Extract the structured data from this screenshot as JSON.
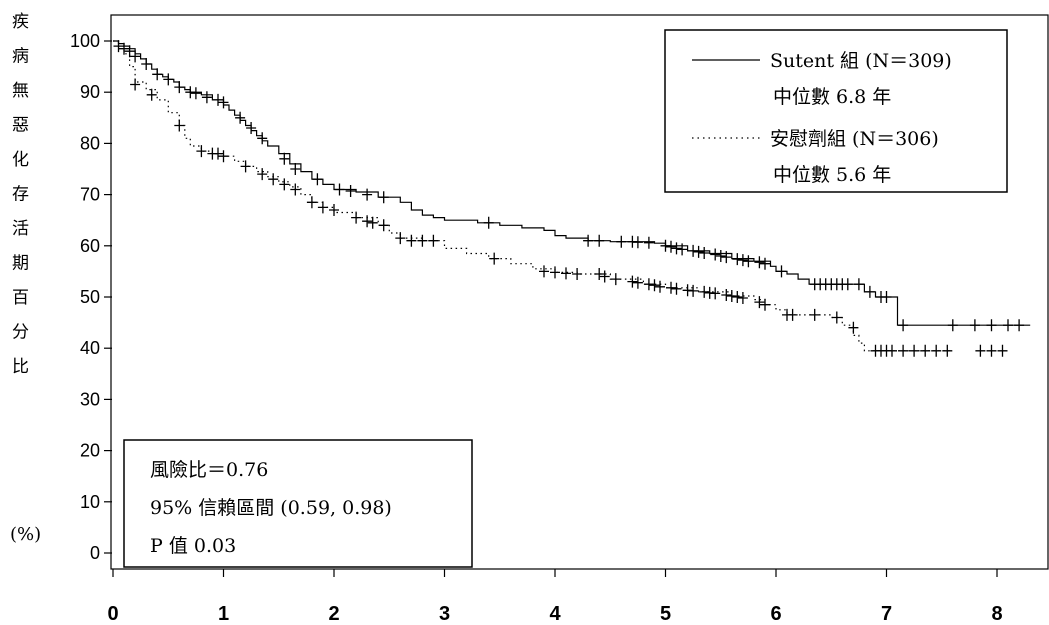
{
  "chart_data": {
    "type": "line",
    "subtype": "kaplan-meier",
    "ylabel": "疾病無惡化存活期百分比",
    "ylabel_unit": "(%)",
    "xlabel": "",
    "xlim": [
      0,
      8.3
    ],
    "ylim": [
      0,
      100
    ],
    "xticks": [
      0,
      1,
      2,
      3,
      4,
      5,
      6,
      7,
      8
    ],
    "yticks": [
      0,
      10,
      20,
      30,
      40,
      50,
      60,
      70,
      80,
      90,
      100
    ],
    "grid": false,
    "legend_position": "top-right",
    "legend": [
      {
        "label": "Sutent 組 (N＝309)",
        "sublabel": "中位數 6.8 年",
        "style": "solid"
      },
      {
        "label": "安慰劑組 (N＝306)",
        "sublabel": "中位數 5.6 年",
        "style": "dotted"
      }
    ],
    "annotation": {
      "position": "bottom-left",
      "lines": [
        "風險比＝0.76",
        "95% 信賴區間 (0.59, 0.98)",
        "P 值 0.03"
      ]
    },
    "series": [
      {
        "name": "Sutent 組",
        "style": "solid",
        "points": [
          [
            0,
            100
          ],
          [
            0.05,
            99.5
          ],
          [
            0.1,
            99
          ],
          [
            0.15,
            98.5
          ],
          [
            0.2,
            97.5
          ],
          [
            0.25,
            96.5
          ],
          [
            0.3,
            95.5
          ],
          [
            0.35,
            94.5
          ],
          [
            0.4,
            93.5
          ],
          [
            0.45,
            93
          ],
          [
            0.5,
            92.5
          ],
          [
            0.55,
            92
          ],
          [
            0.6,
            91
          ],
          [
            0.65,
            90.5
          ],
          [
            0.7,
            90
          ],
          [
            0.8,
            89.5
          ],
          [
            0.9,
            88.5
          ],
          [
            1.0,
            87.5
          ],
          [
            1.05,
            86.5
          ],
          [
            1.1,
            85.5
          ],
          [
            1.15,
            84.5
          ],
          [
            1.2,
            83.5
          ],
          [
            1.25,
            82.5
          ],
          [
            1.3,
            81.5
          ],
          [
            1.35,
            80.5
          ],
          [
            1.4,
            79.5
          ],
          [
            1.5,
            78
          ],
          [
            1.6,
            76
          ],
          [
            1.7,
            74.5
          ],
          [
            1.8,
            73
          ],
          [
            1.9,
            72
          ],
          [
            2.0,
            71
          ],
          [
            2.2,
            70.5
          ],
          [
            2.4,
            69.5
          ],
          [
            2.6,
            68.5
          ],
          [
            2.7,
            67
          ],
          [
            2.8,
            66
          ],
          [
            2.9,
            65.5
          ],
          [
            3.0,
            65
          ],
          [
            3.3,
            64.5
          ],
          [
            3.5,
            64
          ],
          [
            3.7,
            63.5
          ],
          [
            3.9,
            63
          ],
          [
            4.0,
            62
          ],
          [
            4.1,
            61.5
          ],
          [
            4.3,
            61
          ],
          [
            4.5,
            60.8
          ],
          [
            4.9,
            60.5
          ],
          [
            5.0,
            60
          ],
          [
            5.2,
            59
          ],
          [
            5.4,
            58.5
          ],
          [
            5.6,
            57.5
          ],
          [
            5.8,
            57
          ],
          [
            5.95,
            56
          ],
          [
            6.0,
            55
          ],
          [
            6.1,
            54.5
          ],
          [
            6.2,
            53.5
          ],
          [
            6.3,
            52.5
          ],
          [
            6.5,
            52.5
          ],
          [
            6.7,
            52.5
          ],
          [
            6.8,
            51
          ],
          [
            6.9,
            50
          ],
          [
            7.0,
            50
          ],
          [
            7.1,
            44.5
          ],
          [
            8.3,
            44.5
          ]
        ],
        "censored": [
          [
            0.05,
            99
          ],
          [
            0.1,
            98.5
          ],
          [
            0.15,
            98
          ],
          [
            0.2,
            97
          ],
          [
            0.3,
            95.5
          ],
          [
            0.4,
            93.5
          ],
          [
            0.5,
            92.5
          ],
          [
            0.6,
            91
          ],
          [
            0.7,
            90
          ],
          [
            0.75,
            89.8
          ],
          [
            0.85,
            89
          ],
          [
            0.95,
            88.5
          ],
          [
            1.0,
            88
          ],
          [
            1.15,
            85
          ],
          [
            1.25,
            83
          ],
          [
            1.35,
            81
          ],
          [
            1.55,
            77
          ],
          [
            1.65,
            75
          ],
          [
            1.85,
            73
          ],
          [
            2.05,
            71
          ],
          [
            2.15,
            70.7
          ],
          [
            2.3,
            70
          ],
          [
            2.45,
            69.5
          ],
          [
            3.4,
            64.5
          ],
          [
            4.3,
            61
          ],
          [
            4.4,
            61
          ],
          [
            4.6,
            60.8
          ],
          [
            4.7,
            60.8
          ],
          [
            4.75,
            60.7
          ],
          [
            4.85,
            60.6
          ],
          [
            5.0,
            60
          ],
          [
            5.05,
            59.8
          ],
          [
            5.1,
            59.5
          ],
          [
            5.15,
            59.3
          ],
          [
            5.25,
            59
          ],
          [
            5.3,
            58.8
          ],
          [
            5.35,
            58.6
          ],
          [
            5.45,
            58.3
          ],
          [
            5.5,
            58
          ],
          [
            5.55,
            57.8
          ],
          [
            5.65,
            57.4
          ],
          [
            5.7,
            57.2
          ],
          [
            5.75,
            57
          ],
          [
            5.85,
            56.8
          ],
          [
            5.9,
            56.5
          ],
          [
            6.05,
            55
          ],
          [
            6.35,
            52.5
          ],
          [
            6.4,
            52.5
          ],
          [
            6.45,
            52.5
          ],
          [
            6.5,
            52.5
          ],
          [
            6.55,
            52.5
          ],
          [
            6.6,
            52.5
          ],
          [
            6.65,
            52.5
          ],
          [
            6.75,
            52.5
          ],
          [
            6.85,
            51
          ],
          [
            6.95,
            50
          ],
          [
            7.0,
            50
          ],
          [
            7.15,
            44.5
          ],
          [
            7.6,
            44.5
          ],
          [
            7.8,
            44.5
          ],
          [
            7.95,
            44.5
          ],
          [
            8.1,
            44.5
          ],
          [
            8.2,
            44.5
          ]
        ]
      },
      {
        "name": "安慰劑組",
        "style": "dotted",
        "points": [
          [
            0,
            100
          ],
          [
            0.05,
            99
          ],
          [
            0.1,
            97.5
          ],
          [
            0.15,
            95
          ],
          [
            0.2,
            92
          ],
          [
            0.3,
            90.5
          ],
          [
            0.4,
            88.5
          ],
          [
            0.5,
            86
          ],
          [
            0.6,
            83.5
          ],
          [
            0.65,
            81
          ],
          [
            0.7,
            79.5
          ],
          [
            0.8,
            78.5
          ],
          [
            0.9,
            78
          ],
          [
            1.0,
            77.5
          ],
          [
            1.1,
            76.5
          ],
          [
            1.2,
            75.5
          ],
          [
            1.3,
            74.5
          ],
          [
            1.4,
            73.5
          ],
          [
            1.5,
            72.5
          ],
          [
            1.6,
            71.5
          ],
          [
            1.7,
            70
          ],
          [
            1.8,
            68.5
          ],
          [
            1.9,
            67.5
          ],
          [
            2.0,
            66.5
          ],
          [
            2.2,
            65.5
          ],
          [
            2.4,
            64
          ],
          [
            2.5,
            62.5
          ],
          [
            2.6,
            61.5
          ],
          [
            2.8,
            61
          ],
          [
            3.0,
            59.5
          ],
          [
            3.2,
            58.5
          ],
          [
            3.4,
            57.5
          ],
          [
            3.6,
            56.5
          ],
          [
            3.8,
            55.5
          ],
          [
            4.0,
            54.8
          ],
          [
            4.2,
            54.5
          ],
          [
            4.5,
            53.5
          ],
          [
            4.8,
            52.5
          ],
          [
            5.0,
            51.8
          ],
          [
            5.3,
            51
          ],
          [
            5.6,
            50.2
          ],
          [
            5.8,
            49.5
          ],
          [
            5.9,
            48.5
          ],
          [
            6.0,
            47.5
          ],
          [
            6.1,
            46.5
          ],
          [
            6.3,
            46.5
          ],
          [
            6.5,
            46
          ],
          [
            6.6,
            44.5
          ],
          [
            6.7,
            42.5
          ],
          [
            6.75,
            41
          ],
          [
            6.8,
            39.5
          ],
          [
            7.6,
            39.5
          ]
        ],
        "censored": [
          [
            0.2,
            91.5
          ],
          [
            0.35,
            89.5
          ],
          [
            0.6,
            83.5
          ],
          [
            0.8,
            78.5
          ],
          [
            0.9,
            78
          ],
          [
            0.95,
            78
          ],
          [
            1.0,
            77.5
          ],
          [
            1.2,
            75.5
          ],
          [
            1.35,
            74
          ],
          [
            1.45,
            73
          ],
          [
            1.55,
            72
          ],
          [
            1.65,
            71
          ],
          [
            1.8,
            68.5
          ],
          [
            1.9,
            67.5
          ],
          [
            2.0,
            67
          ],
          [
            2.2,
            65.5
          ],
          [
            2.3,
            64.8
          ],
          [
            2.35,
            64.5
          ],
          [
            2.45,
            64
          ],
          [
            2.6,
            61.5
          ],
          [
            2.7,
            61
          ],
          [
            2.8,
            61
          ],
          [
            2.9,
            61
          ],
          [
            3.45,
            57.5
          ],
          [
            3.9,
            55
          ],
          [
            4.0,
            54.8
          ],
          [
            4.1,
            54.6
          ],
          [
            4.2,
            54.5
          ],
          [
            4.4,
            54.5
          ],
          [
            4.45,
            54
          ],
          [
            4.55,
            53.5
          ],
          [
            4.7,
            53
          ],
          [
            4.75,
            52.8
          ],
          [
            4.85,
            52.5
          ],
          [
            4.9,
            52.3
          ],
          [
            4.95,
            52
          ],
          [
            5.05,
            51.8
          ],
          [
            5.1,
            51.6
          ],
          [
            5.2,
            51.3
          ],
          [
            5.25,
            51.2
          ],
          [
            5.35,
            51
          ],
          [
            5.4,
            50.8
          ],
          [
            5.45,
            50.7
          ],
          [
            5.55,
            50.4
          ],
          [
            5.6,
            50.2
          ],
          [
            5.65,
            50
          ],
          [
            5.7,
            49.8
          ],
          [
            5.85,
            49
          ],
          [
            5.9,
            48.5
          ],
          [
            6.1,
            46.5
          ],
          [
            6.15,
            46.5
          ],
          [
            6.35,
            46.5
          ],
          [
            6.55,
            46
          ],
          [
            6.7,
            44
          ],
          [
            6.9,
            39.5
          ],
          [
            6.95,
            39.5
          ],
          [
            7.0,
            39.5
          ],
          [
            7.05,
            39.5
          ],
          [
            7.15,
            39.5
          ],
          [
            7.25,
            39.5
          ],
          [
            7.35,
            39.5
          ],
          [
            7.45,
            39.5
          ],
          [
            7.55,
            39.5
          ],
          [
            7.85,
            39.5
          ],
          [
            7.95,
            39.5
          ],
          [
            8.05,
            39.5
          ]
        ]
      }
    ]
  }
}
